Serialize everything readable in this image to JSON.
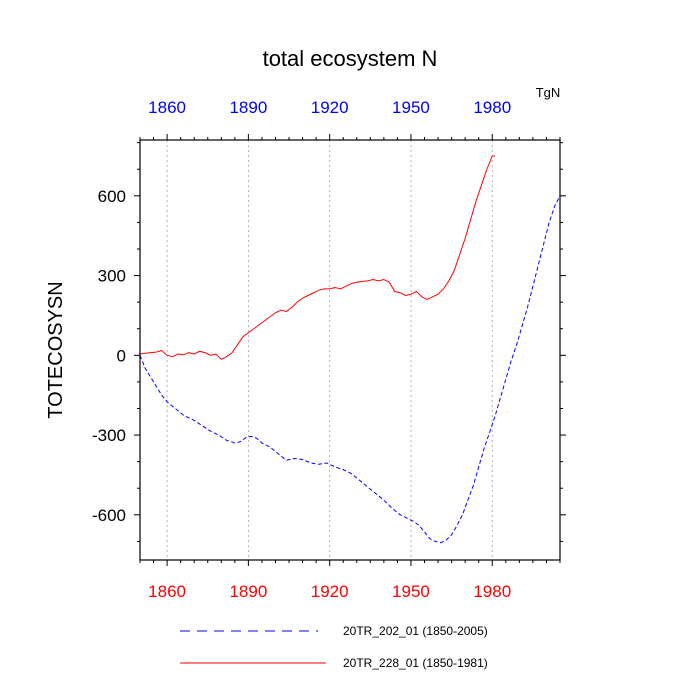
{
  "chart_data": {
    "type": "line",
    "title": "total ecosystem N",
    "units": "TgN",
    "ylabel": "TOTECOSYSN",
    "xlabel": "",
    "xlim": [
      1850,
      2005
    ],
    "ylim": [
      -770,
      810
    ],
    "yticks": [
      -600,
      -300,
      0,
      300,
      600
    ],
    "ytick_labels": [
      "-600",
      "-300",
      "0",
      "300",
      "600"
    ],
    "xticks_top": [
      1860,
      1890,
      1920,
      1950,
      1980
    ],
    "xtick_labels_top": [
      "1860",
      "1890",
      "1920",
      "1950",
      "1980"
    ],
    "xticks_bottom": [
      1860,
      1890,
      1920,
      1950,
      1980
    ],
    "xtick_labels_bottom": [
      "1860",
      "1890",
      "1920",
      "1950",
      "1980"
    ],
    "grid": "vertical dotted at major x ticks",
    "colors": {
      "top_axis": "#0000ff",
      "bottom_axis": "#ff0000"
    },
    "series": [
      {
        "name": "20TR_202_01 (1850-2005)",
        "color": "#0000ff",
        "style": "dashed",
        "x": [
          1850,
          1852,
          1855,
          1858,
          1860,
          1863,
          1866,
          1870,
          1873,
          1876,
          1879,
          1882,
          1885,
          1887,
          1889,
          1891,
          1893,
          1895,
          1898,
          1901,
          1904,
          1907,
          1910,
          1913,
          1916,
          1919,
          1922,
          1925,
          1928,
          1931,
          1934,
          1937,
          1940,
          1943,
          1946,
          1949,
          1951,
          1953,
          1955,
          1957,
          1959,
          1961,
          1963,
          1965,
          1967,
          1969,
          1971,
          1973,
          1975,
          1977,
          1979,
          1981,
          1983,
          1985,
          1987,
          1989,
          1991,
          1993,
          1995,
          1997,
          1999,
          2001,
          2003,
          2005
        ],
        "values": [
          0,
          -50,
          -100,
          -150,
          -175,
          -200,
          -225,
          -245,
          -265,
          -285,
          -300,
          -320,
          -330,
          -325,
          -310,
          -305,
          -312,
          -330,
          -345,
          -370,
          -395,
          -388,
          -392,
          -405,
          -410,
          -405,
          -420,
          -430,
          -445,
          -470,
          -495,
          -520,
          -545,
          -575,
          -600,
          -615,
          -625,
          -640,
          -665,
          -690,
          -700,
          -705,
          -695,
          -675,
          -640,
          -600,
          -545,
          -490,
          -420,
          -350,
          -290,
          -230,
          -160,
          -90,
          -20,
          40,
          110,
          180,
          260,
          340,
          420,
          500,
          560,
          600
        ]
      },
      {
        "name": "20TR_228_01 (1850-1981)",
        "color": "#ff0000",
        "style": "solid",
        "x": [
          1850,
          1852,
          1854,
          1856,
          1858,
          1860,
          1862,
          1864,
          1866,
          1868,
          1870,
          1872,
          1874,
          1876,
          1878,
          1880,
          1882,
          1884,
          1886,
          1888,
          1890,
          1892,
          1894,
          1896,
          1898,
          1900,
          1902,
          1904,
          1906,
          1908,
          1910,
          1912,
          1914,
          1916,
          1918,
          1920,
          1922,
          1924,
          1926,
          1928,
          1930,
          1932,
          1934,
          1936,
          1938,
          1940,
          1942,
          1944,
          1946,
          1948,
          1950,
          1952,
          1954,
          1956,
          1958,
          1960,
          1962,
          1964,
          1966,
          1968,
          1970,
          1972,
          1974,
          1976,
          1978,
          1980,
          1981
        ],
        "values": [
          5,
          8,
          10,
          12,
          18,
          0,
          -5,
          5,
          2,
          10,
          5,
          15,
          10,
          0,
          5,
          -15,
          -5,
          10,
          40,
          70,
          85,
          100,
          115,
          130,
          145,
          160,
          170,
          165,
          180,
          200,
          215,
          225,
          235,
          245,
          250,
          250,
          255,
          250,
          260,
          270,
          275,
          278,
          280,
          285,
          280,
          285,
          275,
          240,
          235,
          225,
          230,
          240,
          220,
          210,
          220,
          230,
          250,
          280,
          320,
          380,
          440,
          510,
          580,
          640,
          700,
          750,
          750
        ]
      }
    ]
  },
  "legend": {
    "items": [
      {
        "label": "20TR_202_01 (1850-2005)"
      },
      {
        "label": "20TR_228_01 (1850-1981)"
      }
    ]
  }
}
